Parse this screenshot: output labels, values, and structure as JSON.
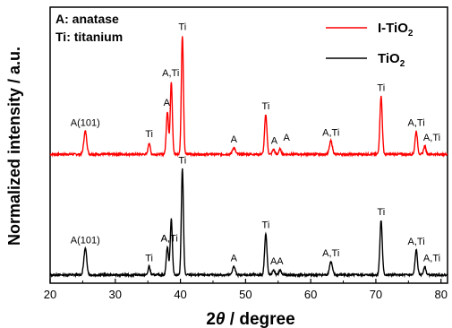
{
  "chart_data": {
    "type": "line",
    "xlabel_main": "2",
    "xlabel_italic": "θ",
    "xlabel_rest": " / degree",
    "ylabel": "Normalized intensity / a.u.",
    "xlim": [
      20,
      81
    ],
    "x_ticks": [
      20,
      30,
      40,
      50,
      60,
      70,
      80
    ],
    "info_lines": [
      "A: anatase",
      "Ti: titanium"
    ],
    "legend_position": "top-right",
    "series": [
      {
        "name": "I-TiO",
        "name_sub": "2",
        "color": "#ff0000",
        "baseline": 0.73,
        "noise_seed": 7,
        "peaks": [
          {
            "pos": 25.4,
            "h": 0.14,
            "w": 0.22,
            "label": "A(101)"
          },
          {
            "pos": 35.2,
            "h": 0.07,
            "w": 0.16,
            "label": "Ti"
          },
          {
            "pos": 38.0,
            "h": 0.26,
            "w": 0.17,
            "label": "A"
          },
          {
            "pos": 38.6,
            "h": 0.44,
            "w": 0.16,
            "label": "A,Ti"
          },
          {
            "pos": 40.3,
            "h": 0.72,
            "w": 0.16,
            "label": "Ti"
          },
          {
            "pos": 48.2,
            "h": 0.04,
            "w": 0.22,
            "label": "A"
          },
          {
            "pos": 53.1,
            "h": 0.24,
            "w": 0.18,
            "label": "Ti"
          },
          {
            "pos": 54.3,
            "h": 0.03,
            "w": 0.18,
            "label": "A"
          },
          {
            "pos": 55.3,
            "h": 0.03,
            "w": 0.18,
            "label": "A"
          },
          {
            "pos": 63.1,
            "h": 0.08,
            "w": 0.22,
            "label": "A,Ti"
          },
          {
            "pos": 70.8,
            "h": 0.35,
            "w": 0.18,
            "label": "Ti"
          },
          {
            "pos": 76.2,
            "h": 0.14,
            "w": 0.18,
            "label": "A,Ti"
          },
          {
            "pos": 77.5,
            "h": 0.05,
            "w": 0.18,
            "label": "A,Ti"
          }
        ]
      },
      {
        "name": "TiO",
        "name_sub": "2",
        "color": "#000000",
        "baseline": 0.0,
        "noise_seed": 13,
        "peaks": [
          {
            "pos": 25.4,
            "h": 0.16,
            "w": 0.22,
            "label": "A(101)"
          },
          {
            "pos": 35.2,
            "h": 0.05,
            "w": 0.16,
            "label": "Ti"
          },
          {
            "pos": 38.0,
            "h": 0.17,
            "w": 0.17,
            "label": "A"
          },
          {
            "pos": 38.6,
            "h": 0.34,
            "w": 0.16,
            "label": "A,Ti"
          },
          {
            "pos": 40.3,
            "h": 0.64,
            "w": 0.16,
            "label": "Ti"
          },
          {
            "pos": 48.2,
            "h": 0.05,
            "w": 0.22,
            "label": "A"
          },
          {
            "pos": 53.1,
            "h": 0.25,
            "w": 0.18,
            "label": "Ti"
          },
          {
            "pos": 54.3,
            "h": 0.03,
            "w": 0.18,
            "label": "A"
          },
          {
            "pos": 55.3,
            "h": 0.03,
            "w": 0.18,
            "label": "A"
          },
          {
            "pos": 63.1,
            "h": 0.08,
            "w": 0.22,
            "label": "A,Ti"
          },
          {
            "pos": 70.8,
            "h": 0.33,
            "w": 0.18,
            "label": "Ti"
          },
          {
            "pos": 76.2,
            "h": 0.15,
            "w": 0.18,
            "label": "A,Ti"
          },
          {
            "pos": 77.5,
            "h": 0.05,
            "w": 0.18,
            "label": "A,Ti"
          }
        ]
      }
    ],
    "peak_annotations": [
      {
        "series": 0,
        "text": "A(101)",
        "x": 25.4
      },
      {
        "series": 0,
        "text": "Ti",
        "x": 35.2
      },
      {
        "series": 0,
        "text": "A",
        "x": 37.9
      },
      {
        "series": 0,
        "text": "A,Ti",
        "x": 38.5
      },
      {
        "series": 0,
        "text": "Ti",
        "x": 40.3
      },
      {
        "series": 0,
        "text": "A",
        "x": 48.2
      },
      {
        "series": 0,
        "text": "Ti",
        "x": 53.1
      },
      {
        "series": 0,
        "text": "A",
        "x": 54.4
      },
      {
        "series": 0,
        "text": "A",
        "x": 56.3
      },
      {
        "series": 0,
        "text": "A,Ti",
        "x": 63.1
      },
      {
        "series": 0,
        "text": "Ti",
        "x": 70.8
      },
      {
        "series": 0,
        "text": "A,Ti",
        "x": 76.2
      },
      {
        "series": 0,
        "text": "A,Ti",
        "x": 78.6
      },
      {
        "series": 1,
        "text": "A(101)",
        "x": 25.4
      },
      {
        "series": 1,
        "text": "Ti",
        "x": 35.2
      },
      {
        "series": 1,
        "text": "A",
        "x": 37.5
      },
      {
        "series": 1,
        "text": "A,Ti",
        "x": 38.3
      },
      {
        "series": 1,
        "text": "Ti",
        "x": 40.3
      },
      {
        "series": 1,
        "text": "A",
        "x": 48.2
      },
      {
        "series": 1,
        "text": "Ti",
        "x": 53.1
      },
      {
        "series": 1,
        "text": "AA",
        "x": 54.8
      },
      {
        "series": 1,
        "text": "A,Ti",
        "x": 63.1
      },
      {
        "series": 1,
        "text": "Ti",
        "x": 70.8
      },
      {
        "series": 1,
        "text": "A,Ti",
        "x": 76.2
      },
      {
        "series": 1,
        "text": "A,Ti",
        "x": 78.6
      }
    ]
  }
}
